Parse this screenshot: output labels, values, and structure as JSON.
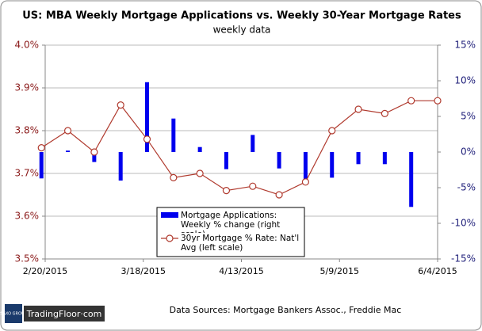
{
  "chart_data": {
    "type": "bar-line",
    "title": "US: MBA Weekly Mortgage Applications vs. Weekly 30-Year Mortgage Rates",
    "subtitle": "weekly data",
    "x": [
      "2/19/2015",
      "2/26/2015",
      "3/5/2015",
      "3/12/2015",
      "3/19/2015",
      "3/26/2015",
      "4/2/2015",
      "4/9/2015",
      "4/16/2015",
      "4/23/2015",
      "4/30/2015",
      "5/7/2015",
      "5/14/2015",
      "5/21/2015",
      "5/28/2015",
      "6/4/2015"
    ],
    "xlim": [
      "2/20/2015",
      "6/4/2015"
    ],
    "xticks": [
      "2/20/2015",
      "3/18/2015",
      "4/13/2015",
      "5/9/2015",
      "6/4/2015"
    ],
    "ylim": [
      3.5,
      4.0
    ],
    "yticks": [
      {
        "value": 3.5,
        "label": "3.5%"
      },
      {
        "value": 3.6,
        "label": "3.6%"
      },
      {
        "value": 3.7,
        "label": "3.7%"
      },
      {
        "value": 3.8,
        "label": "3.8%"
      },
      {
        "value": 3.9,
        "label": "3.9%"
      },
      {
        "value": 4.0,
        "label": "4.0%"
      }
    ],
    "y2lim": [
      -15,
      15
    ],
    "y2ticks": [
      {
        "value": -15,
        "label": "-15%"
      },
      {
        "value": -10,
        "label": "-10%"
      },
      {
        "value": -5,
        "label": "-5%"
      },
      {
        "value": 0,
        "label": "0%"
      },
      {
        "value": 5,
        "label": "5%"
      },
      {
        "value": 10,
        "label": "10%"
      },
      {
        "value": 15,
        "label": "15%"
      }
    ],
    "grid": true,
    "series": [
      {
        "name": "Mortgage Applications: Weekly % change (right scale)",
        "type": "bar",
        "axis": "y2",
        "color": "#0000ee",
        "values": [
          -3.7,
          0.2,
          -1.4,
          -4.0,
          9.8,
          4.7,
          0.7,
          -2.4,
          2.4,
          -2.3,
          -4.0,
          -3.6,
          -1.7,
          -1.7,
          -7.7,
          null
        ]
      },
      {
        "name": "30yr Mortgage % Rate: Nat'l Avg (left scale)",
        "type": "line",
        "axis": "y",
        "color": "#b03a2e",
        "values": [
          3.76,
          3.8,
          3.75,
          3.86,
          3.78,
          3.69,
          3.7,
          3.66,
          3.67,
          3.65,
          3.68,
          3.8,
          3.85,
          3.84,
          3.87,
          3.87
        ]
      }
    ],
    "source": "Data Sources: Mortgage Bankers Assoc., Freddie Mac",
    "logo": {
      "brand": "SAXO GROUP",
      "site": "TradingFloor·com"
    }
  }
}
